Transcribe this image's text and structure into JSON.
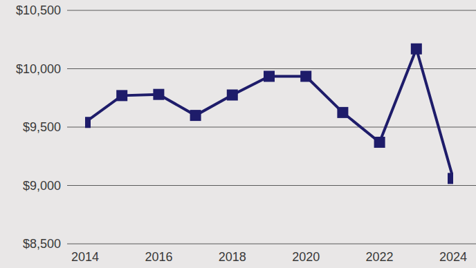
{
  "chart_data": {
    "type": "line",
    "x": [
      2014,
      2015,
      2016,
      2017,
      2018,
      2019,
      2020,
      2021,
      2022,
      2023,
      2024
    ],
    "values": [
      9540,
      9770,
      9780,
      9600,
      9775,
      9935,
      9935,
      9625,
      9370,
      10170,
      9060
    ],
    "color": "#1e1c6a",
    "marker": "square",
    "xlim": [
      2014,
      2024
    ],
    "xticks": [
      2014,
      2016,
      2018,
      2020,
      2022,
      2024
    ],
    "ylim": [
      8500,
      10500
    ],
    "yticks": [
      {
        "value": 8500,
        "label": "$8,500"
      },
      {
        "value": 9000,
        "label": "$9,000"
      },
      {
        "value": 9500,
        "label": "$9,500"
      },
      {
        "value": 10000,
        "label": "$10,000"
      },
      {
        "value": 10500,
        "label": "$10,500"
      }
    ],
    "grid": true
  }
}
